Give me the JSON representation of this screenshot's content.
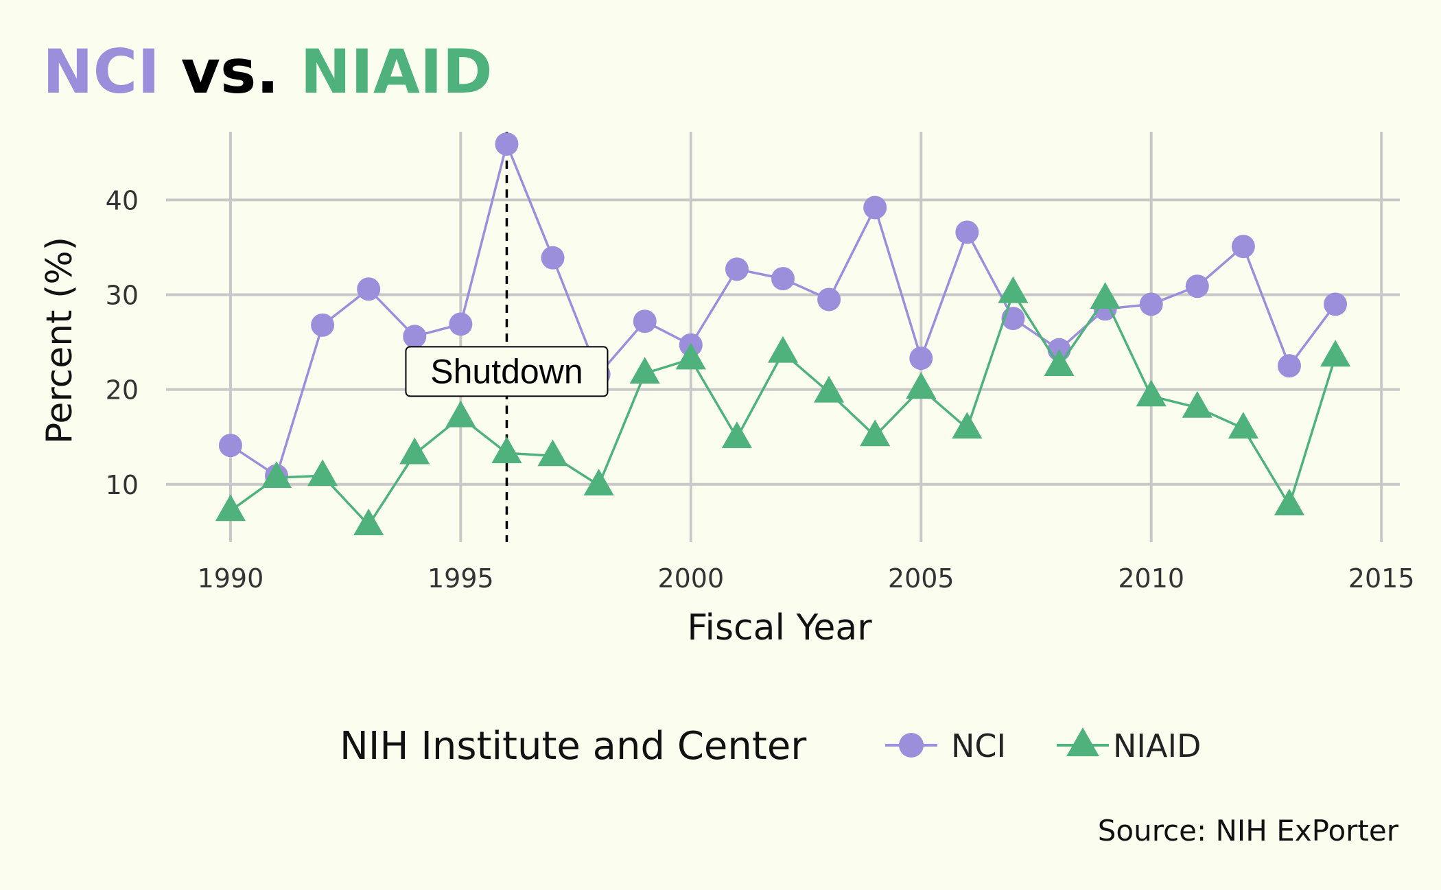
{
  "chart_data": {
    "type": "line",
    "title_parts": [
      {
        "text": "NCI",
        "color": "#9b8fdb"
      },
      {
        "text": " vs. ",
        "color": "#000000"
      },
      {
        "text": "NIAID",
        "color": "#4fb27d"
      }
    ],
    "xlabel": "Fiscal Year",
    "ylabel": "Percent (%)",
    "xlim": [
      1988.6,
      2015.4
    ],
    "ylim": [
      3.9,
      47.2
    ],
    "x_ticks": [
      1990,
      1995,
      2000,
      2005,
      2010,
      2015
    ],
    "y_ticks": [
      10,
      20,
      30,
      40
    ],
    "grid": true,
    "x": [
      1990,
      1991,
      1992,
      1993,
      1994,
      1995,
      1996,
      1997,
      1998,
      1999,
      2000,
      2001,
      2002,
      2003,
      2004,
      2005,
      2006,
      2007,
      2008,
      2009,
      2010,
      2011,
      2012,
      2013,
      2014
    ],
    "series": [
      {
        "name": "NCI",
        "color": "#9b8fdb",
        "marker": "circle",
        "values": [
          14.1,
          10.9,
          26.8,
          30.6,
          25.6,
          26.9,
          45.9,
          33.9,
          21.6,
          27.2,
          24.7,
          32.7,
          31.7,
          29.5,
          39.2,
          23.3,
          36.6,
          27.5,
          24.2,
          28.5,
          29.0,
          30.9,
          35.1,
          22.5,
          29.0
        ]
      },
      {
        "name": "NIAID",
        "color": "#4fb27d",
        "marker": "triangle",
        "values": [
          7.2,
          10.7,
          10.9,
          5.7,
          13.2,
          17.1,
          13.3,
          13.0,
          9.9,
          21.7,
          23.2,
          14.9,
          23.9,
          19.7,
          15.1,
          20.1,
          15.9,
          30.2,
          22.5,
          29.6,
          19.3,
          18.1,
          15.9,
          7.8,
          23.5
        ]
      }
    ],
    "annotations": [
      {
        "type": "vline",
        "x": 1996,
        "style": "dashed"
      },
      {
        "type": "label",
        "text": "Shutdown",
        "x": 1996,
        "y": 21.9
      }
    ],
    "legend": {
      "title": "NIH Institute and Center",
      "position": "bottom"
    },
    "caption": "Source: NIH ExPorter"
  }
}
